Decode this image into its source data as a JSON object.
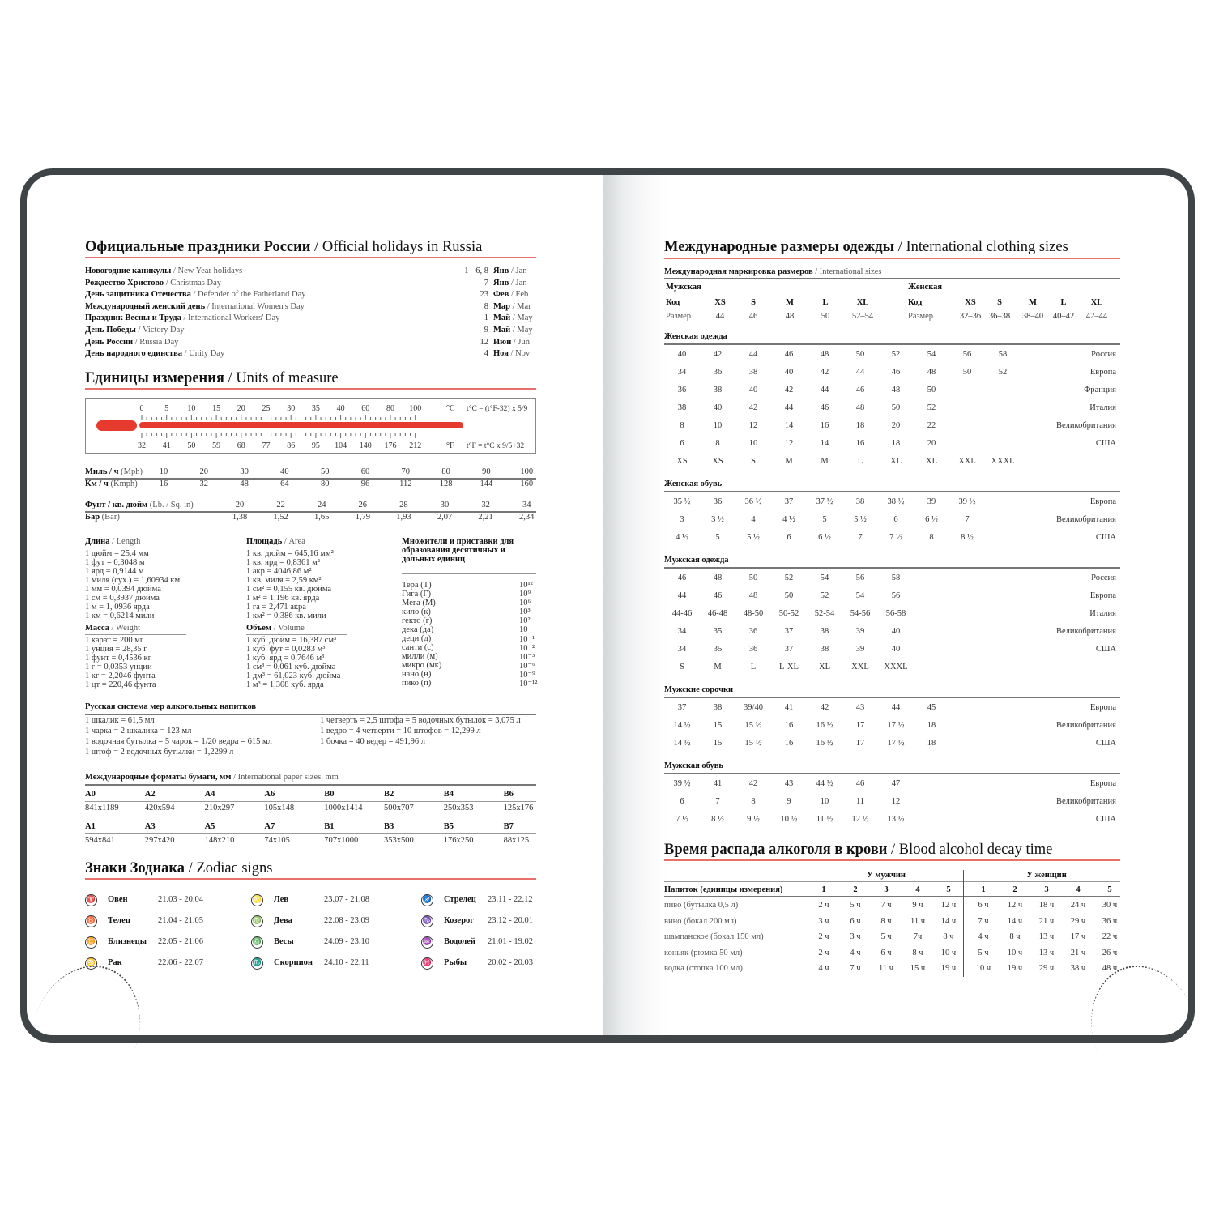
{
  "holidays": {
    "title_ru": "Официальные праздники России",
    "title_en": "/ Official holidays in Russia",
    "items": [
      {
        "ru": "Новогодние каникулы",
        "en": "/ New Year holidays",
        "day": "1 - 6, 8",
        "month_ru": "Янв",
        "month_en": "/ Jan"
      },
      {
        "ru": "Рождество Христово",
        "en": "/ Christmas Day",
        "day": "7",
        "month_ru": "Янв",
        "month_en": "/ Jan"
      },
      {
        "ru": "День защитника Отечества",
        "en": "/ Defender of the Fatherland Day",
        "day": "23",
        "month_ru": "Фев",
        "month_en": "/ Feb"
      },
      {
        "ru": "Международный женский день",
        "en": "/ International Women's Day",
        "day": "8",
        "month_ru": "Мар",
        "month_en": "/ Mar"
      },
      {
        "ru": "Праздник Весны и Труда",
        "en": "/ International Workers' Day",
        "day": "1",
        "month_ru": "Май",
        "month_en": "/ May"
      },
      {
        "ru": "День Победы",
        "en": "/ Victory Day",
        "day": "9",
        "month_ru": "Май",
        "month_en": "/ May"
      },
      {
        "ru": "День России",
        "en": "/ Russia Day",
        "day": "12",
        "month_ru": "Июн",
        "month_en": "/ Jun"
      },
      {
        "ru": "День народного единства",
        "en": "/ Unity Day",
        "day": "4",
        "month_ru": "Ноя",
        "month_en": "/ Nov"
      }
    ]
  },
  "units": {
    "title_ru": "Единицы измерения",
    "title_en": "/ Units of measure",
    "thermometer": {
      "celsius": [
        "0",
        "5",
        "10",
        "15",
        "20",
        "25",
        "30",
        "35",
        "40",
        "60",
        "80",
        "100"
      ],
      "fahrenheit": [
        "32",
        "41",
        "50",
        "59",
        "68",
        "77",
        "86",
        "95",
        "104",
        "140",
        "176",
        "212"
      ],
      "c_unit": "°C",
      "f_unit": "°F",
      "c_formula": "t°C = (t°F-32) x 5/9",
      "f_formula": "t°F = t°C x 9/5+32",
      "color": "#e63a2e"
    },
    "speed": {
      "mph_label_ru": "Миль / ч",
      "mph_label_en": "(Mph)",
      "kmh_label_ru": "Км / ч",
      "kmh_label_en": "(Kmph)",
      "mph": [
        "10",
        "20",
        "30",
        "40",
        "50",
        "60",
        "70",
        "80",
        "90",
        "100"
      ],
      "kmh": [
        "16",
        "32",
        "48",
        "64",
        "80",
        "96",
        "112",
        "128",
        "144",
        "160"
      ]
    },
    "pressure": {
      "psi_label_ru": "Фунт / кв. дюйм",
      "psi_label_en": "(Lb. / Sq. in)",
      "bar_label_ru": "Бар",
      "bar_label_en": "(Bar)",
      "psi": [
        "20",
        "22",
        "24",
        "26",
        "28",
        "30",
        "32",
        "34"
      ],
      "bar": [
        "1,38",
        "1,52",
        "1,65",
        "1,79",
        "1,93",
        "2,07",
        "2,21",
        "2,34"
      ]
    },
    "length": {
      "title_ru": "Длина",
      "title_en": "/ Length",
      "items": [
        "1 дюйм = 25,4 мм",
        "1 фут = 0,3048 м",
        "1 ярд = 0,9144 м",
        "1 миля (сух.) = 1,60934 км",
        "1 мм = 0,0394 дюйма",
        "1 см = 0,3937 дюйма",
        "1 м = 1, 0936 ярда",
        "1 км = 0,6214 мили"
      ]
    },
    "weight": {
      "title_ru": "Масса",
      "title_en": "/ Weight",
      "items": [
        "1 карат = 200 мг",
        "1 унция = 28,35 г",
        "1 фунт = 0,4536 кг",
        "1 г = 0,0353 унции",
        "1 кг = 2,2046 фунта",
        "1 цт = 220,46 фунта"
      ]
    },
    "area": {
      "title_ru": "Площадь",
      "title_en": "/ Area",
      "items": [
        "1 кв. дюйм = 645,16 мм²",
        "1 кв. ярд = 0,8361 м²",
        "1 акр = 4046,86 м²",
        "1 кв. миля = 2,59 км²",
        "1 см² = 0,155 кв. дюйма",
        "1 м² = 1,196 кв. ярда",
        "1 га = 2,471 акра",
        "1 км² = 0,386 кв. мили"
      ]
    },
    "volume": {
      "title_ru": "Объем",
      "title_en": "/ Volume",
      "items": [
        "1 куб. дюйм = 16,387 см³",
        "1 куб. фут = 0,0283 м³",
        "1 куб. ярд = 0,7646 м³",
        "1 см³ = 0,061 куб. дюйма",
        "1 дм³ = 61,023 куб. дюйма",
        "1 м³ = 1,308 куб. ярда"
      ]
    },
    "prefixes": {
      "title": "Множители и приставки для образования десятичных и дольных единиц",
      "items": [
        [
          "Тера (Т)",
          "10¹²"
        ],
        [
          "Гига (Г)",
          "10⁹"
        ],
        [
          "Мега (М)",
          "10⁶"
        ],
        [
          "кило (к)",
          "10³"
        ],
        [
          "гекто (г)",
          "10²"
        ],
        [
          "дека (да)",
          "10"
        ],
        [
          "деци (д)",
          "10⁻¹"
        ],
        [
          "санти (с)",
          "10⁻²"
        ],
        [
          "милли (м)",
          "10⁻³"
        ],
        [
          "микро (мк)",
          "10⁻⁶"
        ],
        [
          "нано (н)",
          "10⁻⁹"
        ],
        [
          "пико (п)",
          "10⁻¹²"
        ]
      ]
    }
  },
  "alcohol_measures": {
    "title": "Русская система мер алкогольных напитков",
    "left": [
      "1 шкалик = 61,5 мл",
      "1 чарка = 2 шкалика = 123 мл",
      "1 водочная бутылка = 5 чарок = 1/20 ведра = 615 мл",
      "1 штоф = 2 водочных бутылки = 1,2299 л"
    ],
    "right": [
      "1 четверть = 2,5 штофа = 5 водочных бутылок = 3,075 л",
      "1 ведро = 4 четверти = 10 штофов = 12,299 л",
      "1 бочка = 40 ведер = 491,96 л"
    ]
  },
  "paper": {
    "title_ru": "Международные форматы бумаги, мм",
    "title_en": "/ International paper sizes, mm",
    "row1": [
      [
        "A0",
        "841x1189"
      ],
      [
        "A2",
        "420x594"
      ],
      [
        "A4",
        "210x297"
      ],
      [
        "A6",
        "105x148"
      ],
      [
        "B0",
        "1000x1414"
      ],
      [
        "B2",
        "500x707"
      ],
      [
        "B4",
        "250x353"
      ],
      [
        "B6",
        "125x176"
      ]
    ],
    "row2": [
      [
        "A1",
        "594x841"
      ],
      [
        "A3",
        "297x420"
      ],
      [
        "A5",
        "148x210"
      ],
      [
        "A7",
        "74x105"
      ],
      [
        "B1",
        "707x1000"
      ],
      [
        "B3",
        "353x500"
      ],
      [
        "B5",
        "176x250"
      ],
      [
        "B7",
        "88x125"
      ]
    ]
  },
  "zodiac": {
    "title_ru": "Знаки Зодиака",
    "title_en": "/ Zodiac signs",
    "items": [
      {
        "name": "Овен",
        "dates": "21.03 - 20.04",
        "icon": "♈"
      },
      {
        "name": "Телец",
        "dates": "21.04 - 21.05",
        "icon": "♉"
      },
      {
        "name": "Близнецы",
        "dates": "22.05 - 21.06",
        "icon": "♊"
      },
      {
        "name": "Рак",
        "dates": "22.06 - 22.07",
        "icon": "♋"
      },
      {
        "name": "Лев",
        "dates": "23.07 - 21.08",
        "icon": "♌"
      },
      {
        "name": "Дева",
        "dates": "22.08 - 23.09",
        "icon": "♍"
      },
      {
        "name": "Весы",
        "dates": "24.09 - 23.10",
        "icon": "♎"
      },
      {
        "name": "Скорпион",
        "dates": "24.10 - 22.11",
        "icon": "♏"
      },
      {
        "name": "Стрелец",
        "dates": "23.11 - 22.12",
        "icon": "♐"
      },
      {
        "name": "Козерог",
        "dates": "23.12 - 20.01",
        "icon": "♑"
      },
      {
        "name": "Водолей",
        "dates": "21.01 - 19.02",
        "icon": "♒"
      },
      {
        "name": "Рыбы",
        "dates": "20.02 - 20.03",
        "icon": "♓"
      }
    ]
  },
  "clothing": {
    "title_ru": "Международные размеры одежды",
    "title_en": "/ International clothing sizes",
    "intl": {
      "title_ru": "Международная маркировка размеров",
      "title_en": "/ International sizes",
      "men": {
        "label": "Мужская",
        "code_label": "Код",
        "size_label": "Размер",
        "codes": [
          "XS",
          "S",
          "M",
          "L",
          "XL"
        ],
        "sizes": [
          "44",
          "46",
          "48",
          "50",
          "52–54"
        ]
      },
      "women": {
        "label": "Женская",
        "code_label": "Код",
        "size_label": "Размер",
        "codes": [
          "XS",
          "S",
          "M",
          "L",
          "XL"
        ],
        "sizes": [
          "32–36",
          "36–38",
          "38–40",
          "40–42",
          "42–44"
        ]
      }
    },
    "grids": [
      {
        "title": "Женская одежда",
        "rows": [
          {
            "values": [
              "40",
              "42",
              "44",
              "46",
              "48",
              "50",
              "52",
              "54",
              "56",
              "58"
            ],
            "country": "Россия"
          },
          {
            "values": [
              "34",
              "36",
              "38",
              "40",
              "42",
              "44",
              "46",
              "48",
              "50",
              "52"
            ],
            "country": "Европа"
          },
          {
            "values": [
              "36",
              "38",
              "40",
              "42",
              "44",
              "46",
              "48",
              "50"
            ],
            "country": "Франция"
          },
          {
            "values": [
              "38",
              "40",
              "42",
              "44",
              "46",
              "48",
              "50",
              "52"
            ],
            "country": "Италия"
          },
          {
            "values": [
              "8",
              "10",
              "12",
              "14",
              "16",
              "18",
              "20",
              "22"
            ],
            "country": "Великобритания"
          },
          {
            "values": [
              "6",
              "8",
              "10",
              "12",
              "14",
              "16",
              "18",
              "20"
            ],
            "country": "США"
          },
          {
            "values": [
              "XS",
              "XS",
              "S",
              "M",
              "M",
              "L",
              "XL",
              "XL",
              "XXL",
              "XXXL"
            ],
            "country": ""
          }
        ]
      },
      {
        "title": "Женская обувь",
        "rows": [
          {
            "values": [
              "35 ½",
              "36",
              "36 ½",
              "37",
              "37 ½",
              "38",
              "38 ½",
              "39",
              "39 ½"
            ],
            "country": "Европа"
          },
          {
            "values": [
              "3",
              "3 ½",
              "4",
              "4 ½",
              "5",
              "5 ½",
              "6",
              "6 ½",
              "7"
            ],
            "country": "Великобритания"
          },
          {
            "values": [
              "4 ½",
              "5",
              "5 ½",
              "6",
              "6 ½",
              "7",
              "7 ½",
              "8",
              "8 ½"
            ],
            "country": "США"
          }
        ]
      },
      {
        "title": "Мужская одежда",
        "rows": [
          {
            "values": [
              "46",
              "48",
              "50",
              "52",
              "54",
              "56",
              "58"
            ],
            "country": "Россия"
          },
          {
            "values": [
              "44",
              "46",
              "48",
              "50",
              "52",
              "54",
              "56"
            ],
            "country": "Европа"
          },
          {
            "values": [
              "44-46",
              "46-48",
              "48-50",
              "50-52",
              "52-54",
              "54-56",
              "56-58"
            ],
            "country": "Италия"
          },
          {
            "values": [
              "34",
              "35",
              "36",
              "37",
              "38",
              "39",
              "40"
            ],
            "country": "Великобритания"
          },
          {
            "values": [
              "34",
              "35",
              "36",
              "37",
              "38",
              "39",
              "40"
            ],
            "country": "США"
          },
          {
            "values": [
              "S",
              "M",
              "L",
              "L-XL",
              "XL",
              "XXL",
              "XXXL"
            ],
            "country": ""
          }
        ]
      },
      {
        "title": "Мужские сорочки",
        "rows": [
          {
            "values": [
              "37",
              "38",
              "39/40",
              "41",
              "42",
              "43",
              "44",
              "45"
            ],
            "country": "Европа"
          },
          {
            "values": [
              "14 ½",
              "15",
              "15 ½",
              "16",
              "16 ½",
              "17",
              "17 ½",
              "18"
            ],
            "country": "Великобритания"
          },
          {
            "values": [
              "14 ½",
              "15",
              "15 ½",
              "16",
              "16 ½",
              "17",
              "17 ½",
              "18"
            ],
            "country": "США"
          }
        ]
      },
      {
        "title": "Мужская обувь",
        "rows": [
          {
            "values": [
              "39 ½",
              "41",
              "42",
              "43",
              "44 ½",
              "46",
              "47"
            ],
            "country": "Европа"
          },
          {
            "values": [
              "6",
              "7",
              "8",
              "9",
              "10",
              "11",
              "12"
            ],
            "country": "Великобритания"
          },
          {
            "values": [
              "7 ½",
              "8 ½",
              "9 ½",
              "10 ½",
              "11 ½",
              "12 ½",
              "13 ½"
            ],
            "country": "США"
          }
        ]
      }
    ]
  },
  "alcohol_decay": {
    "title_ru": "Время распада алкоголя в крови",
    "title_en": "/ Blood alcohol decay time",
    "men_label": "У мужчин",
    "women_label": "У женщин",
    "drink_header": "Напиток (единицы измерения)",
    "columns": [
      "1",
      "2",
      "3",
      "4",
      "5"
    ],
    "rows": [
      {
        "drink": "пиво (бутылка 0,5 л)",
        "men": [
          "2 ч",
          "5 ч",
          "7 ч",
          "9 ч",
          "12 ч"
        ],
        "women": [
          "6 ч",
          "12 ч",
          "18 ч",
          "24 ч",
          "30 ч"
        ]
      },
      {
        "drink": "вино (бокал 200 мл)",
        "men": [
          "3 ч",
          "6 ч",
          "8 ч",
          "11 ч",
          "14 ч"
        ],
        "women": [
          "7 ч",
          "14 ч",
          "21 ч",
          "29 ч",
          "36 ч"
        ]
      },
      {
        "drink": "шампанское (бокал 150 мл)",
        "men": [
          "2 ч",
          "3 ч",
          "5 ч",
          "7ч",
          "8 ч"
        ],
        "women": [
          "4 ч",
          "8 ч",
          "13 ч",
          "17 ч",
          "22 ч"
        ]
      },
      {
        "drink": "коньяк (рюмка 50 мл)",
        "men": [
          "2 ч",
          "4 ч",
          "6 ч",
          "8 ч",
          "10 ч"
        ],
        "women": [
          "5 ч",
          "10 ч",
          "13 ч",
          "21 ч",
          "26 ч"
        ]
      },
      {
        "drink": "водка (стопка 100 мл)",
        "men": [
          "4 ч",
          "7 ч",
          "11 ч",
          "15 ч",
          "19 ч"
        ],
        "women": [
          "10 ч",
          "19 ч",
          "29 ч",
          "38 ч",
          "48 ч"
        ]
      }
    ]
  }
}
